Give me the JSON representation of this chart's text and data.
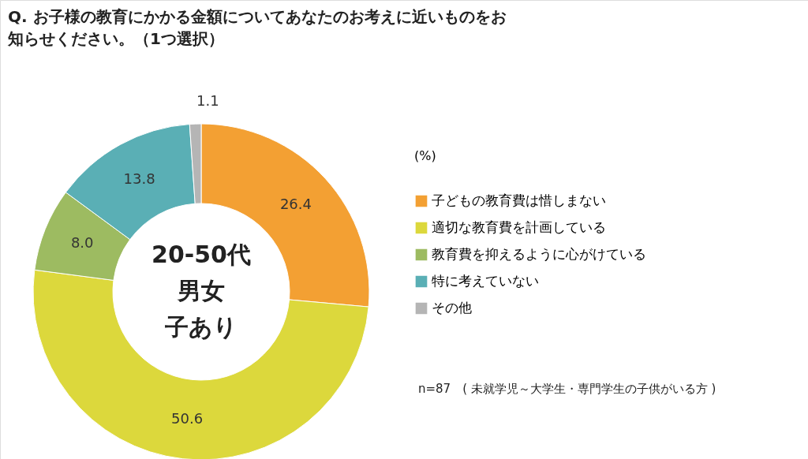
{
  "chart_data": {
    "type": "donut",
    "title": "Q. お子様の教育にかかる金額についてあなたのお考えに近いものをお知らせください。（1つ選択）",
    "categories": [
      "子どもの教育費は惜しまない",
      "適切な教育費を計画している",
      "教育費を抑えるように心がけている",
      "特に考えていない",
      "その他"
    ],
    "values": [
      26.4,
      50.6,
      8.0,
      13.8,
      1.1
    ],
    "value_labels": [
      "26.4",
      "50.6",
      "8.0",
      "13.8",
      "1.1"
    ],
    "colors": [
      "#f3a033",
      "#dcd83c",
      "#9dbb61",
      "#5aafb5",
      "#b5b5b5"
    ],
    "legend_title": "(%)",
    "legend": "right",
    "annotations": [
      "20-50代",
      "男女",
      "子あり",
      "n=87　( 未就学児～大学生・専門学生の子供がいる方 )"
    ]
  }
}
